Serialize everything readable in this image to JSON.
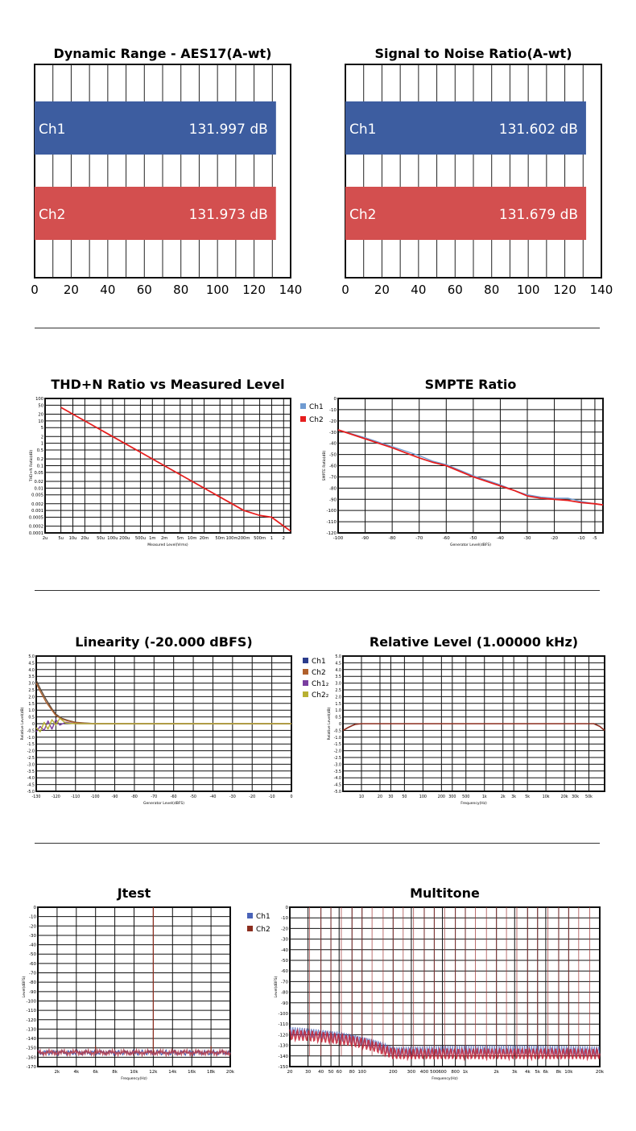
{
  "sections": [
    {
      "charts": [
        {
          "type": "bar",
          "title": "Dynamic Range - AES17(A-wt)",
          "xlim": [
            0,
            140
          ],
          "x_ticks": [
            "0",
            "20",
            "40",
            "60",
            "80",
            "100",
            "120",
            "140"
          ],
          "bars": [
            {
              "label": "Ch1",
              "value": 131.997,
              "value_text": "131.997 dB",
              "color": "#3d5da0"
            },
            {
              "label": "Ch2",
              "value": 131.973,
              "value_text": "131.973 dB",
              "color": "#d34f4f"
            }
          ]
        },
        {
          "type": "bar",
          "title": "Signal to Noise Ratio(A-wt)",
          "xlim": [
            0,
            140
          ],
          "x_ticks": [
            "0",
            "20",
            "40",
            "60",
            "80",
            "100",
            "120",
            "140"
          ],
          "bars": [
            {
              "label": "Ch1",
              "value": 131.602,
              "value_text": "131.602 dB",
              "color": "#3d5da0"
            },
            {
              "label": "Ch2",
              "value": 131.679,
              "value_text": "131.679 dB",
              "color": "#d34f4f"
            }
          ]
        }
      ]
    },
    {
      "charts": [
        {
          "type": "line",
          "title": "THD+N Ratio vs Measured Level",
          "xlabel": "Measured Level(Vrms)",
          "ylabel": "THD+N Ratio(dB)",
          "xscale": "log",
          "yscale": "log",
          "xlim": [
            2e-06,
            3
          ],
          "ylim": [
            0.0001,
            100
          ],
          "y_ticks": [
            "100",
            "50",
            "20",
            "10",
            "5",
            "2",
            "1",
            "0.5",
            "0.2",
            "0.1",
            "0.05",
            "0.02",
            "0.01",
            "0.005",
            "0.002",
            "0.001",
            "0.0005",
            "0.0002",
            "0.0001"
          ],
          "x_ticks": [
            "2u",
            "5u",
            "10u",
            "20u",
            "50u",
            "100u",
            "200u",
            "500u",
            "1m",
            "2m",
            "5m",
            "10m",
            "20m",
            "50m",
            "100m",
            "200m",
            "500m",
            "1",
            "2"
          ],
          "series": [
            {
              "color": "#e61e1e",
              "x": [
                5e-06,
                1e-05,
                0.0001,
                0.001,
                0.01,
                0.1,
                0.2,
                0.5,
                1,
                3
              ],
              "y": [
                40,
                20,
                2,
                0.2,
                0.02,
                0.002,
                0.001,
                0.0006,
                0.0005,
                0.00012
              ]
            }
          ]
        },
        {
          "type": "line",
          "title": "SMPTE Ratio",
          "xlabel": "Generator Level(dBFS)",
          "ylabel": "SMPTE Ratio(dB)",
          "xlim": [
            -100,
            -2
          ],
          "ylim": [
            -120,
            0
          ],
          "y_ticks": [
            "0",
            "-10",
            "-20",
            "-30",
            "-40",
            "-50",
            "-60",
            "-70",
            "-80",
            "-90",
            "-100",
            "-110",
            "-120"
          ],
          "x_ticks": [
            "-100",
            "-90",
            "-80",
            "-70",
            "-60",
            "-50",
            "-40",
            "-30",
            "-20",
            "-10",
            "-5"
          ],
          "legend": [
            "Ch1",
            "Ch2"
          ],
          "legend_colors": [
            "#6f9bd1",
            "#e61e1e"
          ],
          "series": [
            {
              "name": "Ch1",
              "color": "#6f9bd1",
              "x": [
                -100,
                -90,
                -80,
                -70,
                -65,
                -60,
                -55,
                -50,
                -45,
                -40,
                -35,
                -30,
                -25,
                -20,
                -15,
                -10,
                -5,
                -2
              ],
              "y": [
                -28,
                -35,
                -43,
                -51,
                -56,
                -59,
                -64,
                -69,
                -73,
                -77,
                -82,
                -86,
                -88,
                -89,
                -89,
                -92,
                -94,
                -95
              ]
            },
            {
              "name": "Ch2",
              "color": "#e61e1e",
              "x": [
                -100,
                -90,
                -80,
                -70,
                -65,
                -60,
                -55,
                -50,
                -45,
                -40,
                -35,
                -30,
                -25,
                -20,
                -15,
                -10,
                -5,
                -2
              ],
              "y": [
                -28,
                -36,
                -44,
                -53,
                -57,
                -60,
                -65,
                -70,
                -74,
                -78,
                -82,
                -87,
                -89,
                -90,
                -91,
                -93,
                -94,
                -95
              ]
            }
          ]
        }
      ]
    },
    {
      "charts": [
        {
          "type": "line",
          "title": "Linearity (-20.000 dBFS)",
          "xlabel": "Generator Level(dBFS)",
          "ylabel": "Relative Level(dB)",
          "xlim": [
            -130,
            0
          ],
          "ylim": [
            -5,
            5
          ],
          "y_ticks": [
            "5.0",
            "4.5",
            "4.0",
            "3.5",
            "3.0",
            "2.5",
            "2.0",
            "1.5",
            "1.0",
            "0.5",
            "0",
            "-0.5",
            "-1.0",
            "-1.5",
            "-2.0",
            "-2.5",
            "-3.0",
            "-3.5",
            "-4.0",
            "-4.5",
            "-5.0"
          ],
          "x_ticks": [
            "-130",
            "-120",
            "-110",
            "-100",
            "-90",
            "-80",
            "-70",
            "-60",
            "-50",
            "-40",
            "-30",
            "-20",
            "-10",
            "0"
          ],
          "legend": [
            "Ch1",
            "Ch2",
            "Ch1₂",
            "Ch2₂"
          ],
          "legend_colors": [
            "#2b3c8c",
            "#b0602c",
            "#7a3ea0",
            "#b8b032"
          ],
          "series": [
            {
              "name": "Ch1",
              "color": "#5b4a3c",
              "x": [
                -130,
                -128,
                -125,
                -122,
                -120,
                -117,
                -114,
                -110,
                -105,
                -100,
                0
              ],
              "y": [
                3.2,
                2.6,
                1.8,
                1.1,
                0.7,
                0.4,
                0.25,
                0.1,
                0.05,
                0.0,
                0.0
              ]
            },
            {
              "name": "Ch2",
              "color": "#b0602c",
              "x": [
                -130,
                -128,
                -125,
                -122,
                -120,
                -117,
                -114,
                -110,
                -105,
                -100,
                0
              ],
              "y": [
                3.0,
                2.4,
                1.6,
                1.0,
                0.6,
                0.35,
                0.2,
                0.08,
                0.03,
                0.0,
                0.0
              ]
            },
            {
              "name": "Ch1₂",
              "color": "#7a3ea0",
              "x": [
                -130,
                -128,
                -126,
                -124,
                -122,
                -120,
                -118,
                -115,
                -110,
                0
              ],
              "y": [
                -0.6,
                -0.2,
                -0.5,
                0.2,
                -0.4,
                0.3,
                -0.1,
                0.1,
                0.0,
                0.0
              ]
            },
            {
              "name": "Ch2₂",
              "color": "#b8b032",
              "x": [
                -130,
                -128,
                -126,
                -124,
                -122,
                -120,
                -118,
                -115,
                -110,
                0
              ],
              "y": [
                -0.3,
                -0.6,
                0.1,
                -0.4,
                0.3,
                -0.1,
                0.4,
                0.05,
                0.0,
                0.0
              ]
            }
          ]
        },
        {
          "type": "line",
          "title": "Relative Level (1.00000 kHz)",
          "xlabel": "Frequency(Hz)",
          "ylabel": "Relative Level(dB)",
          "xscale": "log",
          "xlim": [
            5,
            90000
          ],
          "ylim": [
            -5,
            5
          ],
          "y_ticks": [
            "5.0",
            "4.5",
            "4.0",
            "3.5",
            "3.0",
            "2.5",
            "2.0",
            "1.5",
            "1.0",
            "0.5",
            "0",
            "-0.5",
            "-1.0",
            "-1.5",
            "-2.0",
            "-2.5",
            "-3.0",
            "-3.5",
            "-4.0",
            "-4.5",
            "-5.0"
          ],
          "x_ticks": [
            "10",
            "20",
            "30",
            "50",
            "100",
            "200",
            "300",
            "500",
            "1k",
            "2k",
            "3k",
            "5k",
            "10k",
            "20k",
            "30k",
            "50k"
          ],
          "series": [
            {
              "name": "Ch2",
              "color": "#8b2d1e",
              "x": [
                5,
                6,
                7,
                8,
                10,
                15,
                20,
                50,
                1000,
                10000,
                40000,
                60000,
                75000,
                90000
              ],
              "y": [
                -0.5,
                -0.3,
                -0.15,
                -0.05,
                0.0,
                0.0,
                0.0,
                0.0,
                0.0,
                0.0,
                0.0,
                0.0,
                -0.2,
                -0.5
              ]
            }
          ]
        }
      ]
    },
    {
      "charts": [
        {
          "type": "line",
          "title": "Jtest",
          "xlabel": "Frequency(Hz)",
          "ylabel": "Level(dBFS)",
          "xlim": [
            0,
            20000
          ],
          "ylim": [
            -170,
            0
          ],
          "y_ticks": [
            "0",
            "-10",
            "-20",
            "-30",
            "-40",
            "-50",
            "-60",
            "-70",
            "-80",
            "-90",
            "-100",
            "-110",
            "-120",
            "-130",
            "-140",
            "-150",
            "-160",
            "-170"
          ],
          "x_ticks": [
            "2k",
            "4k",
            "6k",
            "8k",
            "10k",
            "12k",
            "14k",
            "16k",
            "18k",
            "20k"
          ],
          "legend": [
            "Ch1",
            "Ch2"
          ],
          "legend_colors": [
            "#4a63b8",
            "#8b2d1e"
          ],
          "noise_floor": -155,
          "peaks": [
            {
              "x": 12000,
              "y": 0
            },
            {
              "x": 6000,
              "y": -148
            },
            {
              "x": 18000,
              "y": -148
            }
          ]
        },
        {
          "type": "line",
          "title": "Multitone",
          "xlabel": "Frequency(Hz)",
          "ylabel": "Level(dBFS)",
          "xscale": "log",
          "xlim": [
            20,
            20000
          ],
          "ylim": [
            -150,
            0
          ],
          "y_ticks": [
            "0",
            "-10",
            "-20",
            "-30",
            "-40",
            "-50",
            "-60",
            "-70",
            "-80",
            "-90",
            "-100",
            "-110",
            "-120",
            "-130",
            "-140",
            "-150"
          ],
          "x_ticks": [
            "20",
            "30",
            "40",
            "50",
            "60",
            "80",
            "100",
            "200",
            "300",
            "400",
            "500",
            "600",
            "800",
            "1k",
            "2k",
            "3k",
            "4k",
            "5k",
            "6k",
            "8k",
            "10k",
            "20k"
          ],
          "noise_floor": -135,
          "tones": [
            31,
            40,
            50,
            63,
            80,
            100,
            125,
            160,
            200,
            250,
            315,
            400,
            500,
            630,
            800,
            1000,
            1250,
            1600,
            2000,
            2500,
            3150,
            4000,
            5000,
            6300,
            8000,
            10000,
            12500,
            16000
          ]
        }
      ]
    }
  ]
}
